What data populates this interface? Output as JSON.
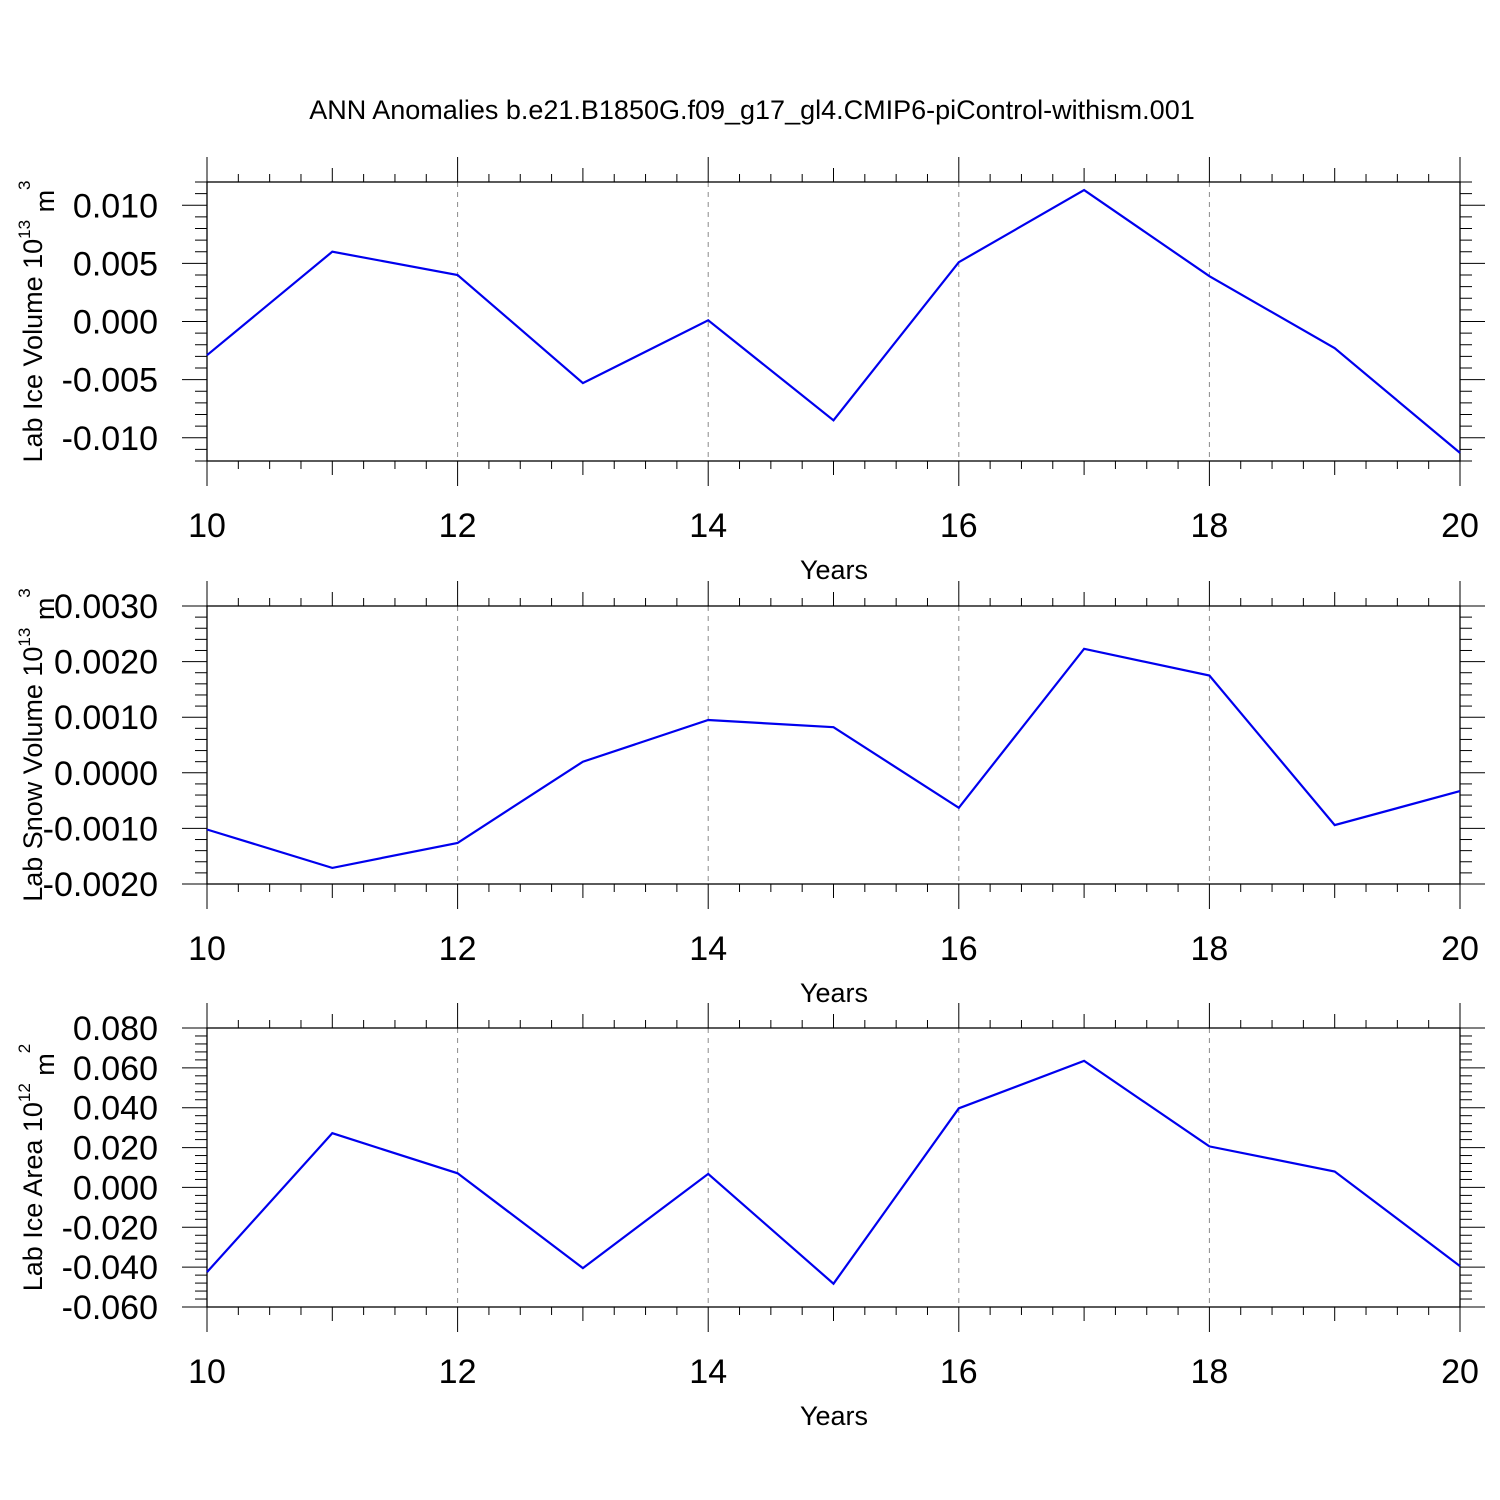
{
  "title": "ANN Anomalies b.e21.B1850G.f09_g17_gl4.CMIP6-piControl-withism.001",
  "chart_data": [
    {
      "type": "line",
      "ylabel": "Lab Ice Volume 10",
      "ylabel_exp": "13",
      "ylabel_unit": " m",
      "ylabel_unit_exp": "3",
      "xlabel": "Years",
      "xlim": [
        10,
        20
      ],
      "ylim": [
        -0.012,
        0.012
      ],
      "x_ticks": [
        "10",
        "12",
        "14",
        "16",
        "18",
        "20"
      ],
      "y_ticks": [
        "0.010",
        "0.005",
        "0.000",
        "-0.005",
        "-0.010"
      ],
      "y_tick_values": [
        0.01,
        0.005,
        0.0,
        -0.005,
        -0.01
      ],
      "grid": "vertical dashed at major x ticks",
      "line_color": "#0000ee",
      "x": [
        10,
        11,
        12,
        13,
        14,
        15,
        16,
        17,
        18,
        19,
        20
      ],
      "values": [
        -0.0029,
        0.006,
        0.004,
        -0.0053,
        0.0001,
        -0.0085,
        0.0051,
        0.0113,
        0.0039,
        -0.0023,
        -0.0113
      ]
    },
    {
      "type": "line",
      "ylabel": "Lab Snow Volume 10",
      "ylabel_exp": "13",
      "ylabel_unit": " m",
      "ylabel_unit_exp": "3",
      "xlabel": "Years",
      "xlim": [
        10,
        20
      ],
      "ylim": [
        -0.002,
        0.003
      ],
      "x_ticks": [
        "10",
        "12",
        "14",
        "16",
        "18",
        "20"
      ],
      "y_ticks": [
        "0.0030",
        "0.0020",
        "0.0010",
        "0.0000",
        "-0.0010",
        "-0.0020"
      ],
      "y_tick_values": [
        0.003,
        0.002,
        0.001,
        0.0,
        -0.001,
        -0.002
      ],
      "grid": "vertical dashed at major x ticks",
      "line_color": "#0000ee",
      "x": [
        10,
        11,
        12,
        13,
        14,
        15,
        16,
        17,
        18,
        19,
        20
      ],
      "values": [
        -0.00102,
        -0.00171,
        -0.00126,
        0.0002,
        0.00095,
        0.00082,
        -0.00063,
        0.00223,
        0.00175,
        -0.00094,
        -0.00033
      ]
    },
    {
      "type": "line",
      "ylabel": "Lab Ice Area 10",
      "ylabel_exp": "12",
      "ylabel_unit": " m",
      "ylabel_unit_exp": "2",
      "xlabel": "Years",
      "xlim": [
        10,
        20
      ],
      "ylim": [
        -0.06,
        0.08
      ],
      "x_ticks": [
        "10",
        "12",
        "14",
        "16",
        "18",
        "20"
      ],
      "y_ticks": [
        "0.080",
        "0.060",
        "0.040",
        "0.020",
        "0.000",
        "-0.020",
        "-0.040",
        "-0.060"
      ],
      "y_tick_values": [
        0.08,
        0.06,
        0.04,
        0.02,
        0.0,
        -0.02,
        -0.04,
        -0.06
      ],
      "grid": "vertical dashed at major x ticks",
      "line_color": "#0000ee",
      "x": [
        10,
        11,
        12,
        13,
        14,
        15,
        16,
        17,
        18,
        19,
        20
      ],
      "values": [
        -0.0425,
        0.0272,
        0.0071,
        -0.0405,
        0.0068,
        -0.0483,
        0.0397,
        0.0635,
        0.0206,
        0.008,
        -0.0395
      ]
    }
  ]
}
